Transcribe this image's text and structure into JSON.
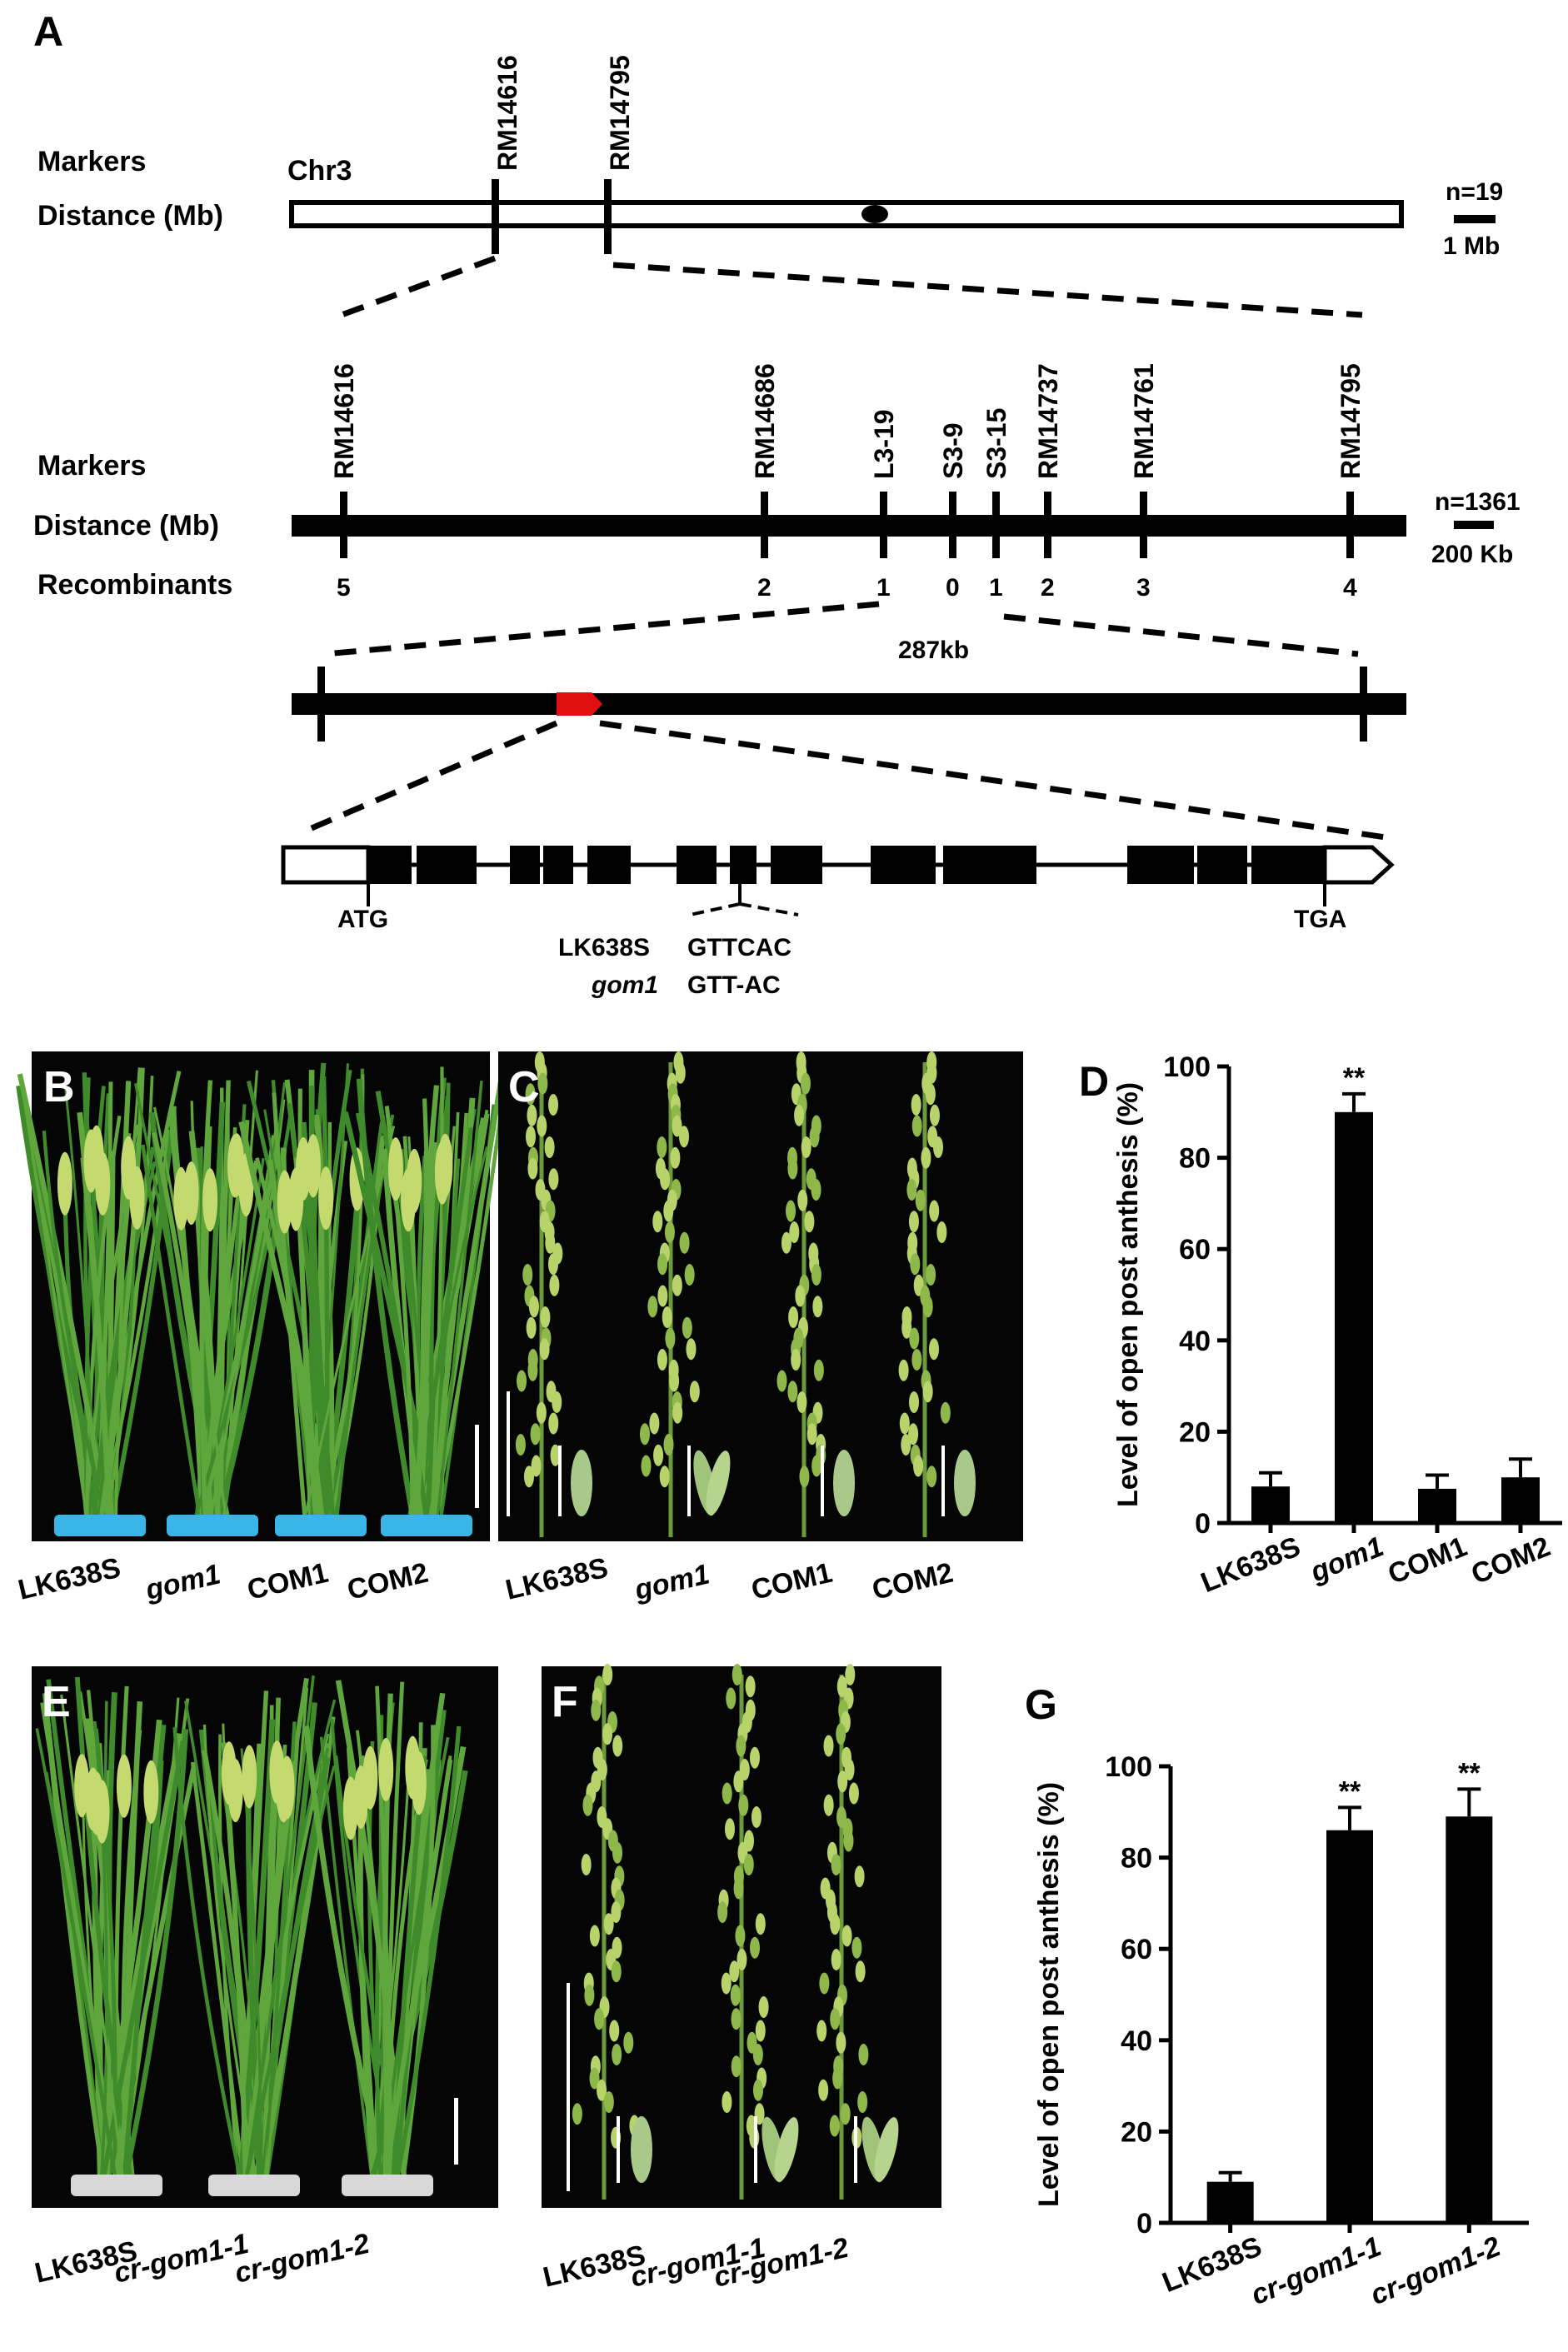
{
  "panel_letters": {
    "A": "A",
    "B": "B",
    "C": "C",
    "D": "D",
    "E": "E",
    "F": "F",
    "G": "G"
  },
  "map1": {
    "markers_label": "Markers",
    "distance_label": "Distance (Mb)",
    "chrom": "Chr3",
    "markers": [
      "RM14616",
      "RM14795"
    ],
    "n": "n=19",
    "scale": "1 Mb"
  },
  "map2": {
    "markers_label": "Markers",
    "distance_label": "Distance (Mb)",
    "recombinants_label": "Recombinants",
    "markers": [
      "RM14616",
      "RM14686",
      "L3-19",
      "S3-9",
      "S3-15",
      "RM14737",
      "RM14761",
      "RM14795"
    ],
    "recombinants": [
      "5",
      "2",
      "1",
      "0",
      "1",
      "2",
      "3",
      "4"
    ],
    "n": "n=1361",
    "scale": "200 Kb"
  },
  "map3": {
    "size": "287kb"
  },
  "gene": {
    "start": "ATG",
    "stop": "TGA",
    "wt_label": "LK638S",
    "wt_seq": "GTTCAC",
    "mut_label": "gom1",
    "mut_seq": "GTT-AC"
  },
  "panelB_labels": [
    "LK638S",
    "gom1",
    "COM1",
    "COM2"
  ],
  "panelC_labels": [
    "LK638S",
    "gom1",
    "COM1",
    "COM2"
  ],
  "panelE_labels": [
    "LK638S",
    "cr-gom1-1",
    "cr-gom1-2"
  ],
  "panelF_labels": [
    "LK638S",
    "cr-gom1-1",
    "cr-gom1-2"
  ],
  "chart_data": [
    {
      "type": "bar",
      "panel": "D",
      "categories": [
        "LK638S",
        "gom1",
        "COM1",
        "COM2"
      ],
      "values": [
        8,
        90,
        7.5,
        10
      ],
      "errors": [
        3,
        4,
        3,
        4
      ],
      "significance": [
        "",
        "**",
        "",
        ""
      ],
      "ylabel": "Level of open post anthesis (%)",
      "ylim": [
        0,
        100
      ],
      "yticks": [
        "0",
        "20",
        "40",
        "60",
        "80",
        "100"
      ]
    },
    {
      "type": "bar",
      "panel": "G",
      "categories": [
        "LK638S",
        "cr-gom1-1",
        "cr-gom1-2"
      ],
      "values": [
        9,
        86,
        89
      ],
      "errors": [
        2,
        5,
        6
      ],
      "significance": [
        "",
        "**",
        "**"
      ],
      "ylabel": "Level of open post anthesis (%)",
      "ylim": [
        0,
        100
      ],
      "yticks": [
        "0",
        "20",
        "40",
        "60",
        "80",
        "100"
      ]
    }
  ],
  "colors": {
    "bar": "#000000",
    "photo_bg": "#050505",
    "leaf": "#3f8a2a",
    "panicle": "#b7d36a",
    "pot_blue": "#39b6e6",
    "pot_white": "#d8d8d8",
    "locus": "#e01010"
  }
}
